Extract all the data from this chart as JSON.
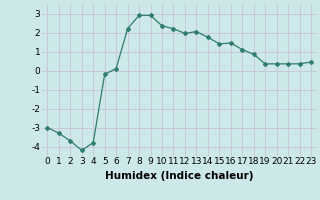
{
  "x": [
    0,
    1,
    2,
    3,
    4,
    5,
    6,
    7,
    8,
    9,
    10,
    11,
    12,
    13,
    14,
    15,
    16,
    17,
    18,
    19,
    20,
    21,
    22,
    23
  ],
  "y": [
    -3.0,
    -3.3,
    -3.7,
    -4.2,
    -3.8,
    -0.2,
    0.1,
    2.2,
    2.9,
    2.9,
    2.35,
    2.2,
    1.95,
    2.05,
    1.75,
    1.4,
    1.45,
    1.1,
    0.85,
    0.35,
    0.35,
    0.35,
    0.35,
    0.45
  ],
  "line_color": "#2e7d6e",
  "bg_color": "#cce8e8",
  "grid_color": "#c8c8d8",
  "xlabel": "Humidex (Indice chaleur)",
  "yticks": [
    -4,
    -3,
    -2,
    -1,
    0,
    1,
    2,
    3
  ],
  "xticks": [
    0,
    1,
    2,
    3,
    4,
    5,
    6,
    7,
    8,
    9,
    10,
    11,
    12,
    13,
    14,
    15,
    16,
    17,
    18,
    19,
    20,
    21,
    22,
    23
  ],
  "xlim": [
    -0.5,
    23.5
  ],
  "ylim": [
    -4.5,
    3.5
  ],
  "xlabel_fontsize": 7.5,
  "tick_fontsize": 6.5
}
